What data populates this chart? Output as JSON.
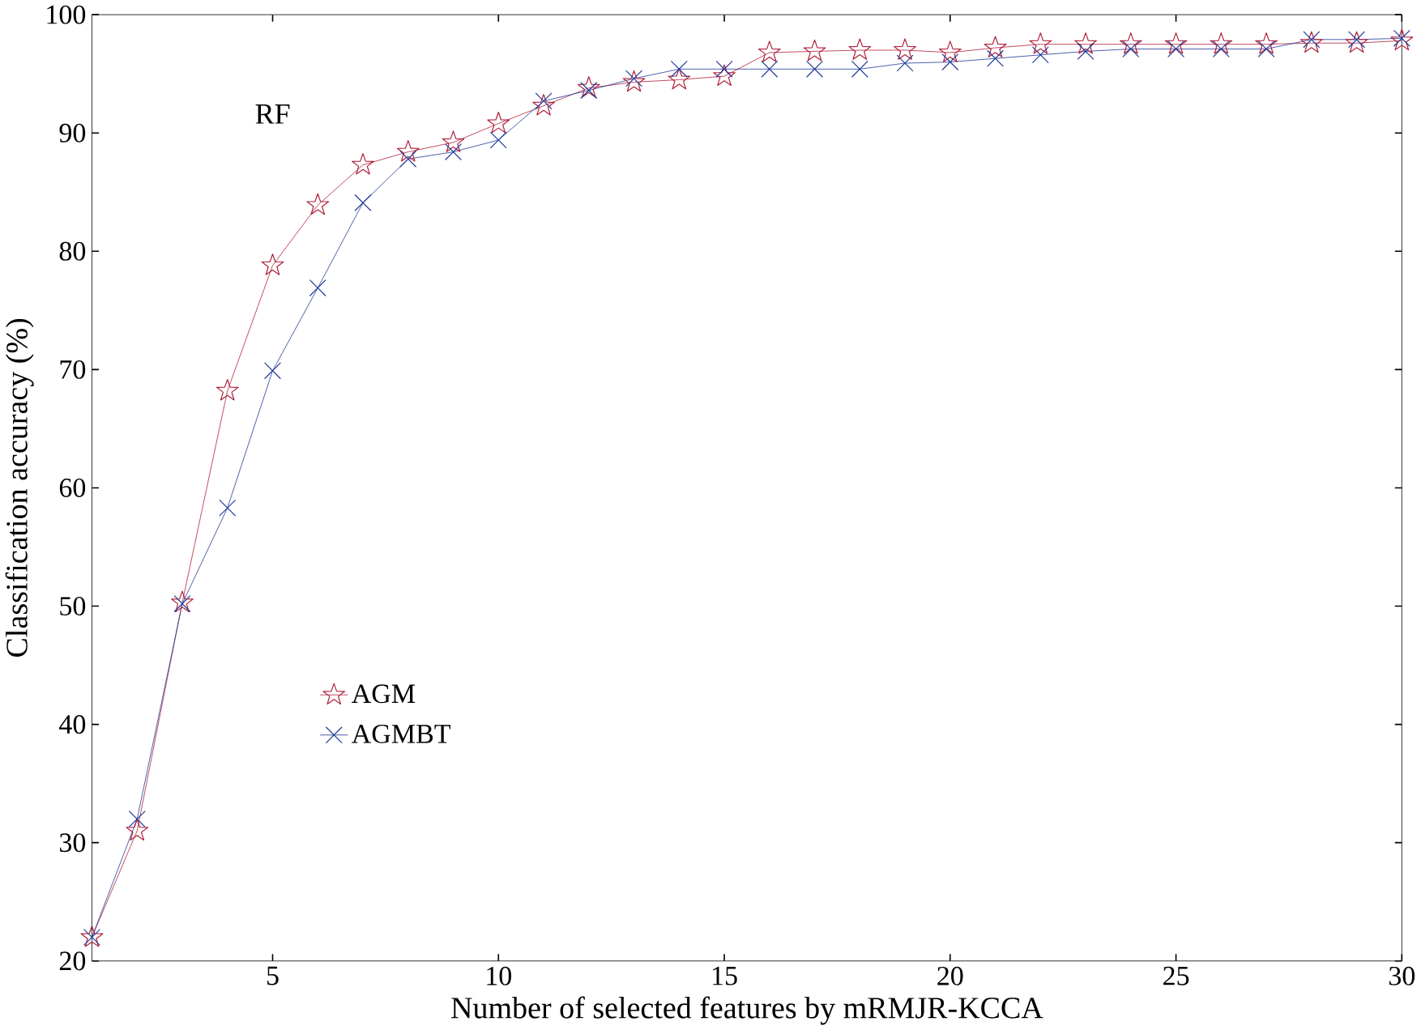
{
  "chart_data": {
    "type": "line",
    "xlabel": "Number of selected features by mRMJR-KCCA",
    "ylabel": "Classification accuracy (%)",
    "annotations": [
      "RF"
    ],
    "x": [
      1,
      2,
      3,
      4,
      5,
      6,
      7,
      8,
      9,
      10,
      11,
      12,
      13,
      14,
      15,
      16,
      17,
      18,
      19,
      20,
      21,
      22,
      23,
      24,
      25,
      26,
      27,
      28,
      29,
      30
    ],
    "series": [
      {
        "name": "AGM",
        "color": "#b0203a",
        "marker": "star",
        "values": [
          22,
          31,
          50.3,
          68.2,
          78.8,
          83.9,
          87.3,
          88.4,
          89.2,
          90.8,
          92.3,
          93.8,
          94.3,
          94.5,
          94.8,
          96.8,
          96.9,
          97.0,
          97.0,
          96.8,
          97.2,
          97.5,
          97.5,
          97.5,
          97.5,
          97.5,
          97.5,
          97.6,
          97.6,
          97.8
        ]
      },
      {
        "name": "AGMBT",
        "color": "#1f3a9a",
        "marker": "cross",
        "values": [
          22,
          32,
          50.2,
          58.3,
          69.9,
          76.9,
          84.1,
          87.8,
          88.4,
          89.4,
          92.7,
          93.6,
          94.6,
          95.4,
          95.4,
          95.4,
          95.4,
          95.4,
          95.9,
          96.0,
          96.3,
          96.6,
          96.9,
          97.1,
          97.1,
          97.1,
          97.1,
          97.9,
          97.9,
          98.0
        ]
      }
    ],
    "xlim": [
      1,
      30
    ],
    "xticks": [
      5,
      10,
      15,
      20,
      25,
      30
    ],
    "ylim": [
      20,
      100
    ],
    "yticks": [
      20,
      30,
      40,
      50,
      60,
      70,
      80,
      90,
      100
    ],
    "grid": false,
    "legend": "left",
    "line_style": "solid"
  }
}
